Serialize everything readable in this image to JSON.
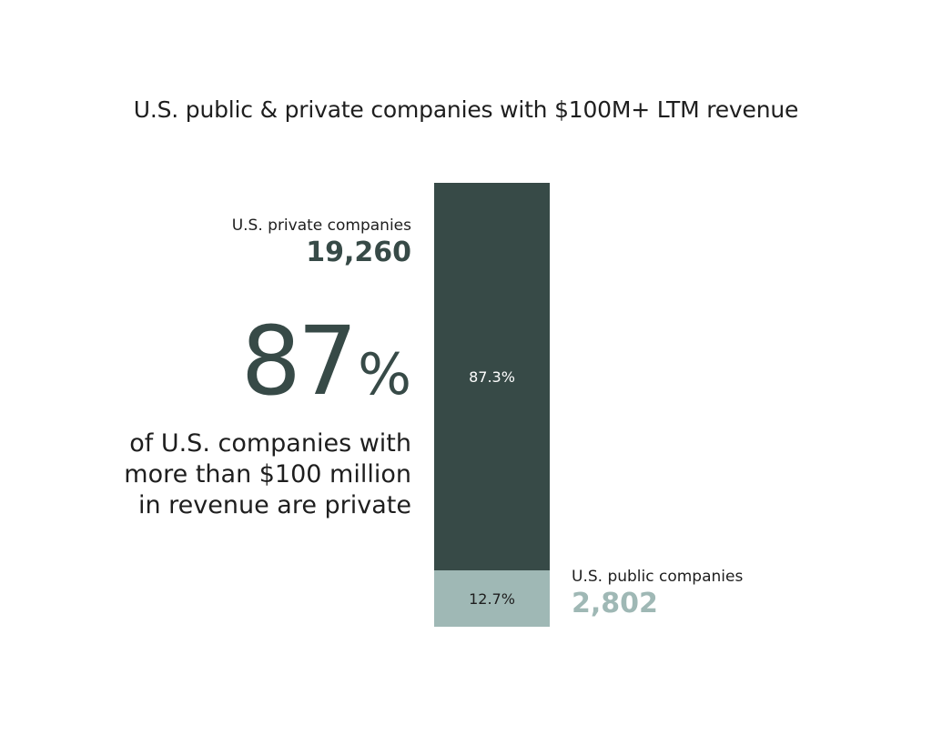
{
  "chart_data": {
    "type": "bar",
    "stacked": true,
    "title": "U.S. public & private companies with $100M+ LTM revenue",
    "segments": [
      {
        "name": "U.S. private companies",
        "count_label": "19,260",
        "value": 87.3,
        "value_label": "87.3%",
        "color": "#374a47",
        "text_color": "#ffffff"
      },
      {
        "name": "U.S. public companies",
        "count_label": "2,802",
        "value": 12.7,
        "value_label": "12.7%",
        "color": "#9fb8b5",
        "text_color": "#1e1e1e"
      }
    ],
    "ylim": [
      0,
      100
    ]
  },
  "headline": {
    "number": "87",
    "percent_sign": "%",
    "line1": "of U.S. companies with",
    "line2": "more than $100 million",
    "line3": "in revenue are private"
  }
}
